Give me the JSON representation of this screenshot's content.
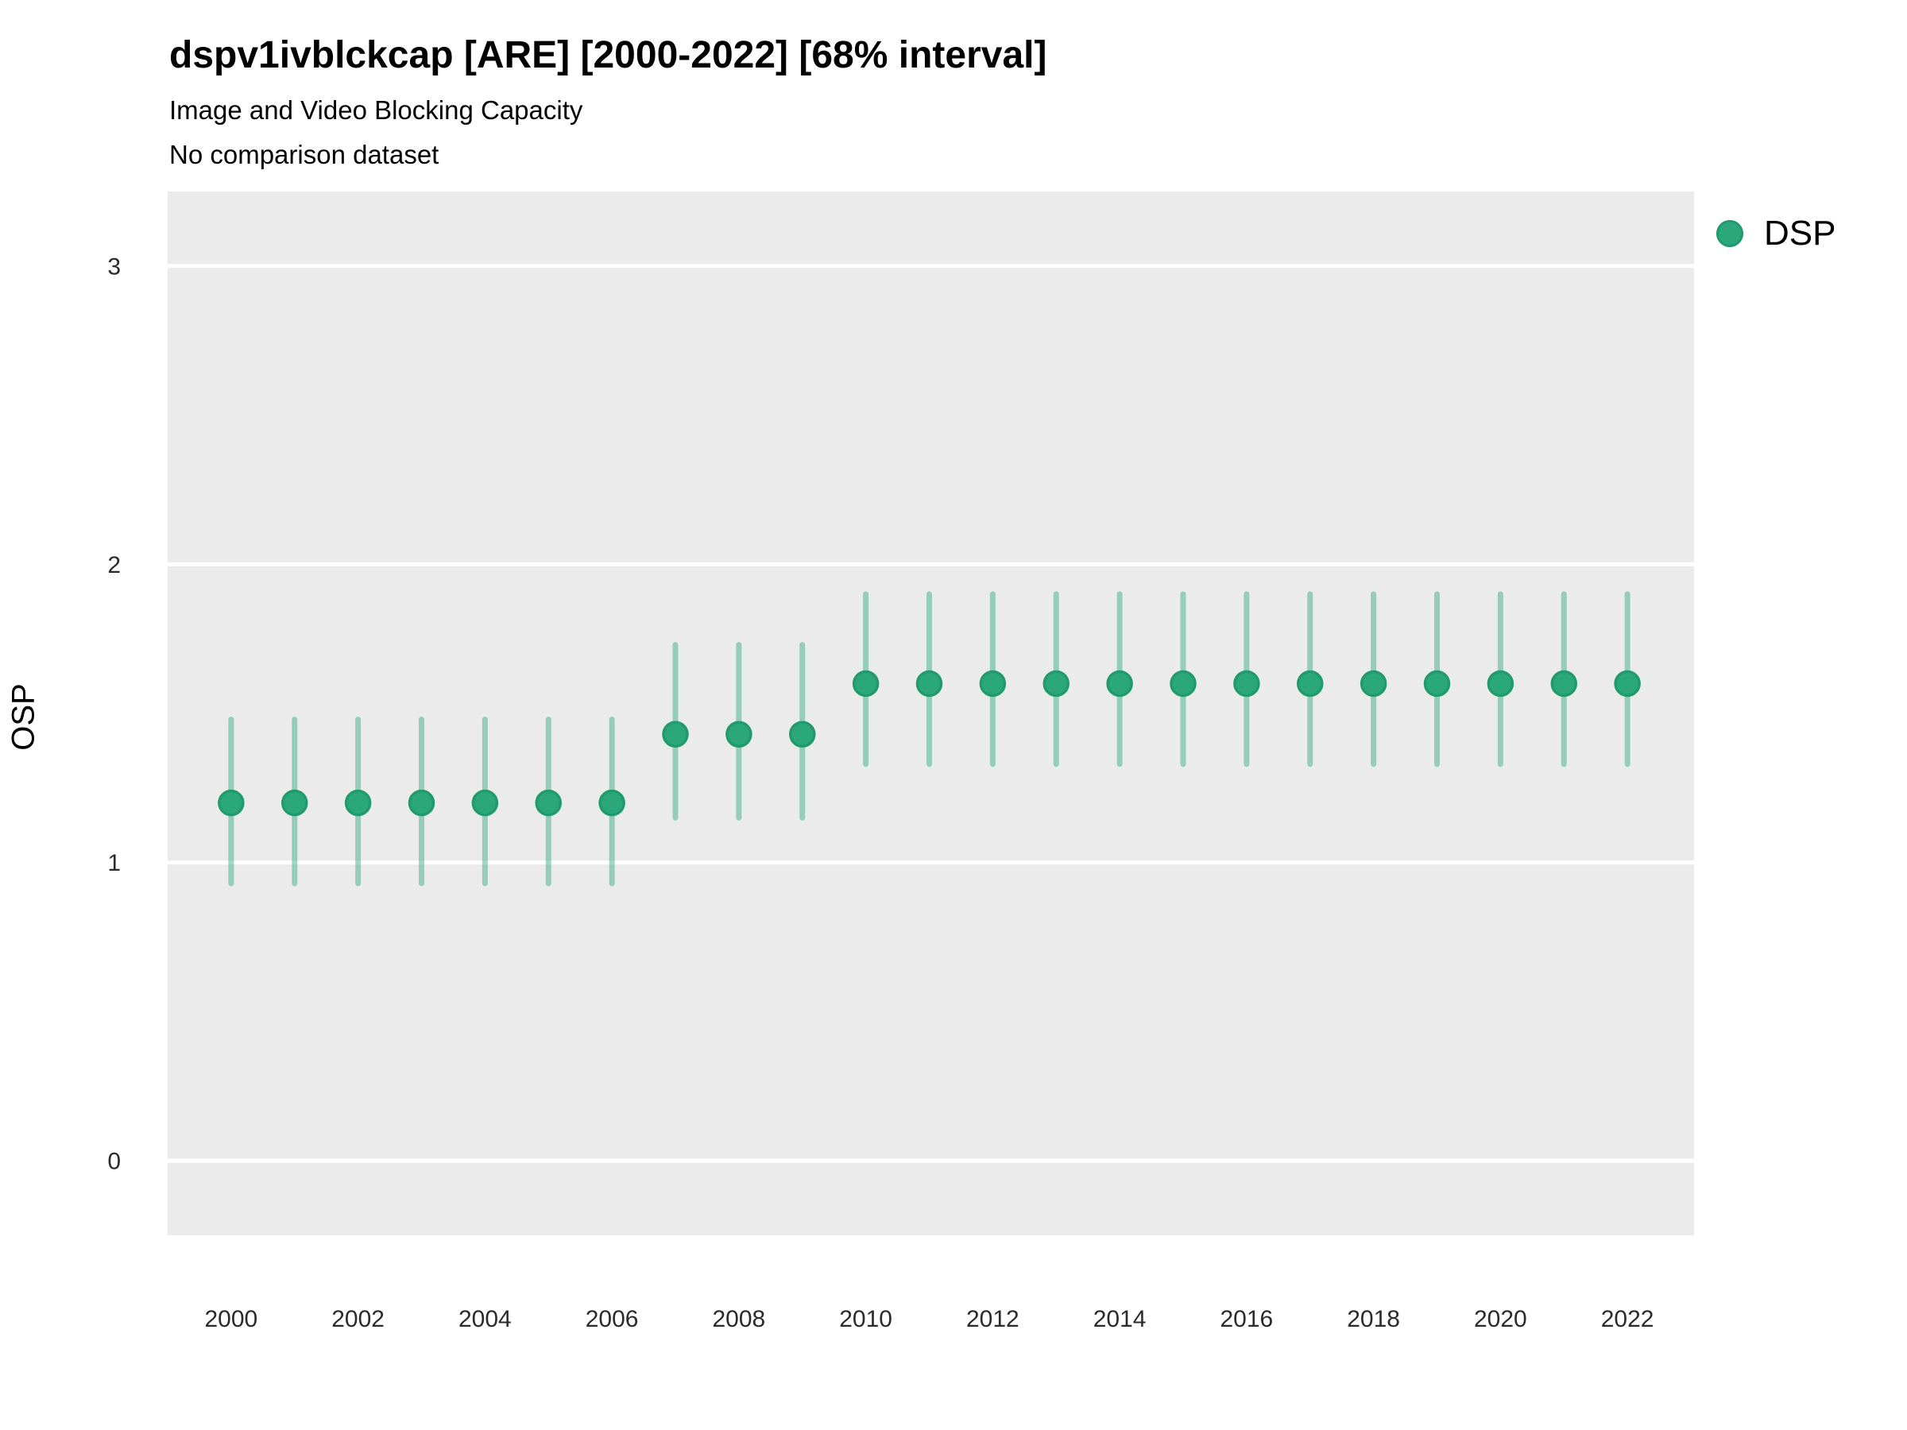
{
  "header": {
    "title": "dspv1ivblckcap [ARE] [2000-2022] [68% interval]",
    "subtitle": "Image and Video Blocking Capacity",
    "note": "No comparison dataset"
  },
  "axes": {
    "y_title": "OSP"
  },
  "legend": {
    "position": "right",
    "items": [
      {
        "label": "DSP",
        "color": "#2aa87c"
      }
    ]
  },
  "colors": {
    "accent_green": "#2aa87c",
    "accent_green_dark": "#219a6f",
    "panel_background": "#ebebeb",
    "gridline": "#ffffff",
    "tick_label": "#2b2b2b",
    "page_background": "#ffffff"
  },
  "chart_data": {
    "type": "pointrange",
    "title": "dspv1ivblckcap [ARE] [2000-2022] [68% interval]",
    "subtitle": "Image and Video Blocking Capacity",
    "note": "No comparison dataset",
    "xlabel": "",
    "ylabel": "OSP",
    "ylim": [
      -0.25,
      3.25
    ],
    "xlim": [
      1999.0,
      2023.05
    ],
    "yticks": [
      0,
      1,
      2,
      3
    ],
    "xticks": [
      2000,
      2002,
      2004,
      2006,
      2008,
      2010,
      2012,
      2014,
      2016,
      2018,
      2020,
      2022
    ],
    "grid": "horizontal-major-white",
    "legend_position": "right",
    "interval_note": "68% interval shown as vertical semi-transparent bars around each point",
    "series": [
      {
        "name": "DSP",
        "color": "#2aa87c",
        "interval_opacity": 0.45,
        "points": [
          {
            "year": 2000,
            "mid": 1.2,
            "lo": 0.93,
            "hi": 1.48
          },
          {
            "year": 2001,
            "mid": 1.2,
            "lo": 0.93,
            "hi": 1.48
          },
          {
            "year": 2002,
            "mid": 1.2,
            "lo": 0.93,
            "hi": 1.48
          },
          {
            "year": 2003,
            "mid": 1.2,
            "lo": 0.93,
            "hi": 1.48
          },
          {
            "year": 2004,
            "mid": 1.2,
            "lo": 0.93,
            "hi": 1.48
          },
          {
            "year": 2005,
            "mid": 1.2,
            "lo": 0.93,
            "hi": 1.48
          },
          {
            "year": 2006,
            "mid": 1.2,
            "lo": 0.93,
            "hi": 1.48
          },
          {
            "year": 2007,
            "mid": 1.43,
            "lo": 1.15,
            "hi": 1.73
          },
          {
            "year": 2008,
            "mid": 1.43,
            "lo": 1.15,
            "hi": 1.73
          },
          {
            "year": 2009,
            "mid": 1.43,
            "lo": 1.15,
            "hi": 1.73
          },
          {
            "year": 2010,
            "mid": 1.6,
            "lo": 1.33,
            "hi": 1.9
          },
          {
            "year": 2011,
            "mid": 1.6,
            "lo": 1.33,
            "hi": 1.9
          },
          {
            "year": 2012,
            "mid": 1.6,
            "lo": 1.33,
            "hi": 1.9
          },
          {
            "year": 2013,
            "mid": 1.6,
            "lo": 1.33,
            "hi": 1.9
          },
          {
            "year": 2014,
            "mid": 1.6,
            "lo": 1.33,
            "hi": 1.9
          },
          {
            "year": 2015,
            "mid": 1.6,
            "lo": 1.33,
            "hi": 1.9
          },
          {
            "year": 2016,
            "mid": 1.6,
            "lo": 1.33,
            "hi": 1.9
          },
          {
            "year": 2017,
            "mid": 1.6,
            "lo": 1.33,
            "hi": 1.9
          },
          {
            "year": 2018,
            "mid": 1.6,
            "lo": 1.33,
            "hi": 1.9
          },
          {
            "year": 2019,
            "mid": 1.6,
            "lo": 1.33,
            "hi": 1.9
          },
          {
            "year": 2020,
            "mid": 1.6,
            "lo": 1.33,
            "hi": 1.9
          },
          {
            "year": 2021,
            "mid": 1.6,
            "lo": 1.33,
            "hi": 1.9
          },
          {
            "year": 2022,
            "mid": 1.6,
            "lo": 1.33,
            "hi": 1.9
          }
        ]
      }
    ]
  }
}
